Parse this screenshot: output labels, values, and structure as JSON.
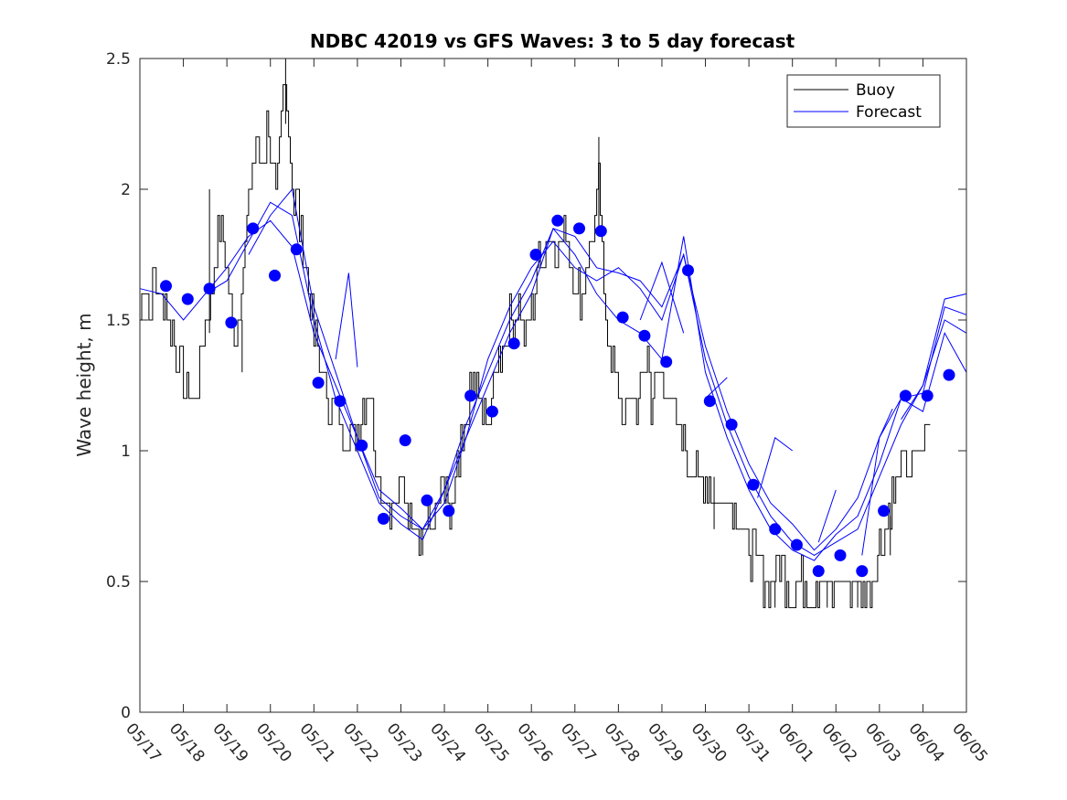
{
  "chart_data": {
    "type": "line",
    "title": "NDBC 42019 vs GFS Waves: 3 to 5 day forecast",
    "xlabel": "",
    "ylabel": "Wave height, m",
    "ylim": [
      0,
      2.5
    ],
    "yticks": [
      "0",
      "0.5",
      "1",
      "1.5",
      "2",
      "2.5"
    ],
    "xlim_days": [
      0,
      19
    ],
    "xticks": [
      "05/17",
      "05/18",
      "05/19",
      "05/20",
      "05/21",
      "05/22",
      "05/23",
      "05/24",
      "05/25",
      "05/26",
      "05/27",
      "05/28",
      "05/29",
      "05/30",
      "05/31",
      "06/01",
      "06/02",
      "06/03",
      "06/04",
      "06/05"
    ],
    "grid": false,
    "legend_position": "top-right",
    "legend": [
      "Buoy",
      "Forecast"
    ],
    "colors": {
      "buoy": "#000000",
      "forecast": "#0000ff",
      "markers": "#0000ff"
    },
    "buoy_anchors": [
      [
        0,
        1.55
      ],
      [
        0.1,
        1.7
      ],
      [
        0.2,
        1.5
      ],
      [
        0.3,
        1.65
      ],
      [
        0.45,
        1.6
      ],
      [
        0.6,
        1.55
      ],
      [
        0.7,
        1.5
      ],
      [
        0.8,
        1.4
      ],
      [
        0.95,
        1.3
      ],
      [
        1.05,
        1.2
      ],
      [
        1.15,
        1.25
      ],
      [
        1.25,
        1.15
      ],
      [
        1.35,
        1.3
      ],
      [
        1.5,
        1.45
      ],
      [
        1.65,
        1.6
      ],
      [
        1.8,
        1.85
      ],
      [
        1.95,
        1.8
      ],
      [
        2.05,
        1.6
      ],
      [
        2.15,
        1.4
      ],
      [
        2.25,
        1.5
      ],
      [
        2.4,
        1.75
      ],
      [
        2.55,
        2.0
      ],
      [
        2.65,
        2.2
      ],
      [
        2.8,
        2.1
      ],
      [
        2.95,
        2.25
      ],
      [
        3.05,
        2.05
      ],
      [
        3.15,
        1.95
      ],
      [
        3.25,
        2.25
      ],
      [
        3.35,
        2.45
      ],
      [
        3.45,
        2.15
      ],
      [
        3.55,
        1.95
      ],
      [
        3.65,
        1.9
      ],
      [
        3.8,
        1.7
      ],
      [
        3.95,
        1.5
      ],
      [
        4.05,
        1.4
      ],
      [
        4.2,
        1.3
      ],
      [
        4.35,
        1.2
      ],
      [
        4.5,
        1.15
      ],
      [
        4.65,
        1.05
      ],
      [
        4.8,
        1.1
      ],
      [
        4.95,
        1.05
      ],
      [
        5.1,
        1.15
      ],
      [
        5.25,
        1.25
      ],
      [
        5.35,
        1.1
      ],
      [
        5.45,
        0.95
      ],
      [
        5.6,
        0.85
      ],
      [
        5.75,
        0.75
      ],
      [
        5.9,
        0.8
      ],
      [
        6.05,
        0.85
      ],
      [
        6.2,
        0.75
      ],
      [
        6.35,
        0.7
      ],
      [
        6.45,
        0.7
      ],
      [
        6.55,
        0.75
      ],
      [
        6.7,
        0.7
      ],
      [
        6.85,
        0.75
      ],
      [
        7.0,
        0.85
      ],
      [
        7.1,
        0.75
      ],
      [
        7.2,
        0.8
      ],
      [
        7.35,
        0.95
      ],
      [
        7.5,
        1.1
      ],
      [
        7.65,
        1.25
      ],
      [
        7.8,
        1.2
      ],
      [
        7.95,
        1.1
      ],
      [
        8.1,
        1.2
      ],
      [
        8.25,
        1.35
      ],
      [
        8.4,
        1.45
      ],
      [
        8.55,
        1.5
      ],
      [
        8.7,
        1.55
      ],
      [
        8.85,
        1.45
      ],
      [
        9.0,
        1.55
      ],
      [
        9.15,
        1.7
      ],
      [
        9.3,
        1.8
      ],
      [
        9.45,
        1.85
      ],
      [
        9.6,
        1.75
      ],
      [
        9.75,
        1.85
      ],
      [
        9.9,
        1.75
      ],
      [
        10.05,
        1.6
      ],
      [
        10.2,
        1.6
      ],
      [
        10.3,
        1.75
      ],
      [
        10.45,
        1.85
      ],
      [
        10.55,
        2.05
      ],
      [
        10.65,
        1.6
      ],
      [
        10.75,
        1.5
      ],
      [
        10.85,
        1.35
      ],
      [
        11.0,
        1.2
      ],
      [
        11.15,
        1.15
      ],
      [
        11.3,
        1.2
      ],
      [
        11.45,
        1.15
      ],
      [
        11.55,
        1.3
      ],
      [
        11.65,
        1.4
      ],
      [
        11.75,
        1.2
      ],
      [
        11.85,
        1.3
      ],
      [
        12.0,
        1.25
      ],
      [
        12.15,
        1.2
      ],
      [
        12.3,
        1.1
      ],
      [
        12.45,
        1.05
      ],
      [
        12.6,
        0.95
      ],
      [
        12.75,
        0.9
      ],
      [
        12.9,
        0.85
      ],
      [
        13.05,
        0.9
      ],
      [
        13.2,
        0.8
      ],
      [
        13.35,
        0.8
      ],
      [
        13.5,
        0.85
      ],
      [
        13.65,
        0.75
      ],
      [
        13.8,
        0.7
      ],
      [
        13.95,
        0.65
      ],
      [
        14.1,
        0.6
      ],
      [
        14.25,
        0.55
      ],
      [
        14.4,
        0.5
      ],
      [
        14.55,
        0.5
      ],
      [
        14.7,
        0.55
      ],
      [
        14.85,
        0.5
      ],
      [
        15.0,
        0.45
      ],
      [
        15.1,
        0.5
      ],
      [
        15.25,
        0.5
      ],
      [
        15.4,
        0.45
      ],
      [
        15.55,
        0.5
      ],
      [
        15.7,
        0.5
      ],
      [
        15.85,
        0.45
      ],
      [
        16.0,
        0.5
      ],
      [
        16.15,
        0.5
      ],
      [
        16.3,
        0.45
      ],
      [
        16.45,
        0.5
      ],
      [
        16.6,
        0.45
      ],
      [
        16.75,
        0.5
      ],
      [
        16.9,
        0.55
      ],
      [
        17.05,
        0.65
      ],
      [
        17.2,
        0.75
      ],
      [
        17.35,
        0.85
      ],
      [
        17.5,
        0.95
      ],
      [
        17.65,
        0.9
      ],
      [
        17.8,
        0.95
      ],
      [
        17.95,
        1.0
      ],
      [
        18.1,
        1.05
      ],
      [
        18.2,
        1.15
      ]
    ],
    "buoy_spikes": [
      [
        1.6,
        2.0
      ],
      [
        3.35,
        2.5
      ],
      [
        2.35,
        1.3
      ],
      [
        6.5,
        0.6
      ],
      [
        10.55,
        2.2
      ],
      [
        13.2,
        0.7
      ],
      [
        14.6,
        0.4
      ],
      [
        15.8,
        0.4
      ],
      [
        16.5,
        0.4
      ],
      [
        17.25,
        0.6
      ]
    ],
    "forecast_markers": [
      [
        0.6,
        1.63
      ],
      [
        1.1,
        1.58
      ],
      [
        1.6,
        1.62
      ],
      [
        2.1,
        1.49
      ],
      [
        2.6,
        1.85
      ],
      [
        3.1,
        1.67
      ],
      [
        3.6,
        1.77
      ],
      [
        4.1,
        1.26
      ],
      [
        4.6,
        1.19
      ],
      [
        5.1,
        1.02
      ],
      [
        5.6,
        0.74
      ],
      [
        6.1,
        1.04
      ],
      [
        6.6,
        0.81
      ],
      [
        7.1,
        0.77
      ],
      [
        7.6,
        1.21
      ],
      [
        8.1,
        1.15
      ],
      [
        8.6,
        1.41
      ],
      [
        9.1,
        1.75
      ],
      [
        9.6,
        1.88
      ],
      [
        10.1,
        1.85
      ],
      [
        10.6,
        1.84
      ],
      [
        11.1,
        1.51
      ],
      [
        11.6,
        1.44
      ],
      [
        12.1,
        1.34
      ],
      [
        12.6,
        1.69
      ],
      [
        13.1,
        1.19
      ],
      [
        13.6,
        1.1
      ],
      [
        14.1,
        0.87
      ],
      [
        14.6,
        0.7
      ],
      [
        15.1,
        0.64
      ],
      [
        15.6,
        0.54
      ],
      [
        16.1,
        0.6
      ],
      [
        16.6,
        0.54
      ],
      [
        17.1,
        0.77
      ],
      [
        17.6,
        1.21
      ],
      [
        18.1,
        1.21
      ],
      [
        18.6,
        1.29
      ]
    ],
    "forecast_series": [
      {
        "values": [
          [
            0,
            1.62
          ],
          [
            0.5,
            1.6
          ],
          [
            1.0,
            1.5
          ],
          [
            1.5,
            1.6
          ],
          [
            2.0,
            1.7
          ],
          [
            2.5,
            1.82
          ],
          [
            3.0,
            1.88
          ],
          [
            3.5,
            1.78
          ],
          [
            4.0,
            1.45
          ],
          [
            4.5,
            1.25
          ],
          [
            5.0,
            1.05
          ],
          [
            5.5,
            0.82
          ],
          [
            6.0,
            0.75
          ],
          [
            6.5,
            0.7
          ],
          [
            7.0,
            0.85
          ],
          [
            7.5,
            1.05
          ],
          [
            8.0,
            1.25
          ],
          [
            8.5,
            1.45
          ],
          [
            9.0,
            1.6
          ],
          [
            9.5,
            1.85
          ],
          [
            10.0,
            1.82
          ],
          [
            10.5,
            1.7
          ],
          [
            11.0,
            1.68
          ],
          [
            11.5,
            1.65
          ],
          [
            12.0,
            1.55
          ],
          [
            12.5,
            1.75
          ],
          [
            13.0,
            1.35
          ],
          [
            13.5,
            1.1
          ],
          [
            14.0,
            0.9
          ],
          [
            14.5,
            0.75
          ],
          [
            15.0,
            0.65
          ],
          [
            15.5,
            0.6
          ],
          [
            16.0,
            0.65
          ],
          [
            16.5,
            0.7
          ],
          [
            17.0,
            0.9
          ],
          [
            17.5,
            1.1
          ],
          [
            18.0,
            1.25
          ],
          [
            18.5,
            1.5
          ],
          [
            19.0,
            1.45
          ]
        ]
      },
      {
        "values": [
          [
            1.5,
            1.6
          ],
          [
            2.0,
            1.65
          ],
          [
            2.5,
            1.8
          ],
          [
            3.0,
            1.95
          ],
          [
            3.5,
            1.9
          ],
          [
            4.0,
            1.5
          ],
          [
            4.5,
            1.2
          ],
          [
            5.0,
            1.0
          ],
          [
            5.5,
            0.8
          ],
          [
            6.0,
            0.72
          ],
          [
            6.5,
            0.66
          ],
          [
            7.0,
            0.85
          ],
          [
            7.5,
            1.1
          ],
          [
            8.0,
            1.3
          ],
          [
            8.5,
            1.5
          ],
          [
            9.0,
            1.65
          ],
          [
            9.5,
            1.85
          ],
          [
            10.0,
            1.75
          ],
          [
            10.5,
            1.6
          ],
          [
            11.0,
            1.5
          ],
          [
            11.5,
            1.45
          ],
          [
            12.0,
            1.35
          ],
          [
            12.5,
            1.82
          ],
          [
            13.0,
            1.3
          ],
          [
            13.5,
            1.05
          ],
          [
            14.0,
            0.85
          ],
          [
            14.5,
            0.7
          ],
          [
            15.0,
            0.62
          ],
          [
            15.5,
            0.58
          ],
          [
            16.0,
            0.68
          ],
          [
            16.5,
            0.75
          ],
          [
            17.0,
            0.95
          ],
          [
            17.5,
            1.2
          ],
          [
            18.0,
            1.22
          ],
          [
            18.5,
            1.55
          ],
          [
            19.0,
            1.52
          ]
        ]
      },
      {
        "values": [
          [
            2.5,
            1.75
          ],
          [
            3.0,
            1.9
          ],
          [
            3.5,
            2.0
          ],
          [
            4.0,
            1.55
          ],
          [
            4.5,
            1.3
          ],
          [
            5.0,
            1.05
          ],
          [
            5.5,
            0.85
          ],
          [
            6.0,
            0.78
          ],
          [
            6.5,
            0.7
          ],
          [
            7.0,
            0.8
          ],
          [
            7.5,
            1.05
          ],
          [
            8.0,
            1.35
          ],
          [
            8.5,
            1.55
          ],
          [
            9.0,
            1.7
          ],
          [
            9.5,
            1.8
          ],
          [
            10.0,
            1.7
          ],
          [
            10.5,
            1.65
          ],
          [
            11.0,
            1.7
          ],
          [
            11.5,
            1.62
          ],
          [
            12.0,
            1.5
          ],
          [
            12.5,
            1.75
          ],
          [
            13.0,
            1.4
          ],
          [
            13.5,
            1.15
          ],
          [
            14.0,
            0.95
          ],
          [
            14.5,
            0.8
          ],
          [
            15.0,
            0.72
          ],
          [
            15.5,
            0.62
          ],
          [
            16.0,
            0.7
          ],
          [
            16.5,
            0.82
          ],
          [
            17.0,
            1.05
          ],
          [
            17.5,
            1.2
          ],
          [
            18.0,
            1.15
          ],
          [
            18.5,
            1.45
          ],
          [
            19.0,
            1.3
          ]
        ]
      },
      {
        "values": [
          [
            4.5,
            1.35
          ],
          [
            4.8,
            1.68
          ],
          [
            5.0,
            1.32
          ]
        ]
      },
      {
        "values": [
          [
            11.5,
            1.5
          ],
          [
            12.0,
            1.72
          ],
          [
            12.5,
            1.45
          ]
        ]
      },
      {
        "values": [
          [
            13.0,
            1.2
          ],
          [
            13.5,
            1.28
          ]
        ]
      },
      {
        "values": [
          [
            14.2,
            0.82
          ],
          [
            14.6,
            1.05
          ],
          [
            15.0,
            1.0
          ]
        ]
      },
      {
        "values": [
          [
            15.6,
            0.65
          ],
          [
            16.0,
            0.85
          ]
        ]
      },
      {
        "values": [
          [
            16.6,
            0.6
          ],
          [
            17.0,
            1.05
          ],
          [
            17.3,
            1.16
          ]
        ]
      },
      {
        "values": [
          [
            17.5,
            1.12
          ],
          [
            18.0,
            1.25
          ],
          [
            18.5,
            1.58
          ],
          [
            19.0,
            1.6
          ]
        ]
      }
    ]
  }
}
